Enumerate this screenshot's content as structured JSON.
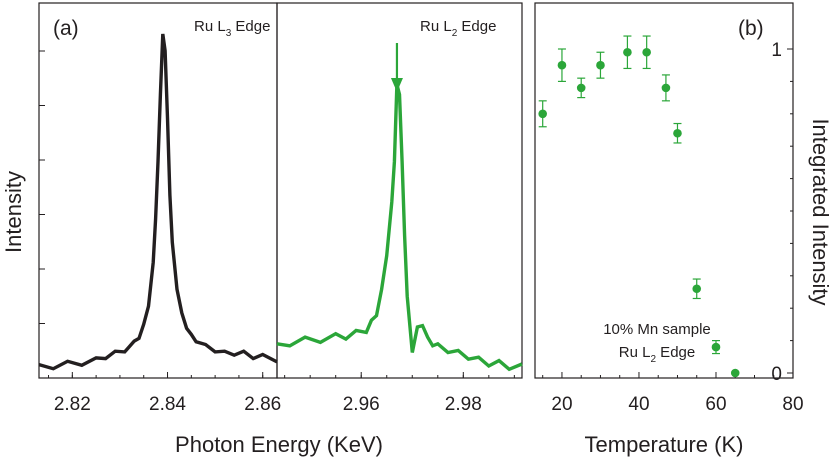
{
  "colors": {
    "dark": "#231f20",
    "green": "#2ba639"
  },
  "chart_data": [
    {
      "type": "line",
      "panel_label": "(a)",
      "annotation": "Ru L3 Edge",
      "annotation_main": "Ru L",
      "annotation_sub": "3",
      "annotation_tail": " Edge",
      "xlabel": "Photon Energy (KeV)",
      "ylabel": "Intensity",
      "xlim": [
        2.813,
        2.863
      ],
      "xticks": [
        "2.82",
        "2.84",
        "2.86"
      ],
      "yticks": 6,
      "ylim": [
        0,
        1
      ],
      "series": [
        {
          "color": "#231f20",
          "x": [
            2.813,
            2.816,
            2.819,
            2.822,
            2.825,
            2.827,
            2.829,
            2.831,
            2.833,
            2.834,
            2.835,
            2.836,
            2.837,
            2.8375,
            2.838,
            2.8385,
            2.839,
            2.8395,
            2.84,
            2.8405,
            2.841,
            2.842,
            2.843,
            2.844,
            2.845,
            2.846,
            2.848,
            2.85,
            2.852,
            2.854,
            2.856,
            2.858,
            2.86,
            2.863
          ],
          "y": [
            0.01,
            0.01,
            0.02,
            0.02,
            0.03,
            0.04,
            0.05,
            0.06,
            0.08,
            0.1,
            0.13,
            0.19,
            0.32,
            0.45,
            0.62,
            0.82,
            1.0,
            0.95,
            0.75,
            0.52,
            0.38,
            0.24,
            0.17,
            0.13,
            0.1,
            0.09,
            0.07,
            0.06,
            0.05,
            0.05,
            0.05,
            0.04,
            0.04,
            0.03
          ]
        }
      ]
    },
    {
      "type": "line",
      "annotation": "Ru L2 Edge",
      "annotation_main": "Ru L",
      "annotation_sub": "2",
      "annotation_tail": " Edge",
      "xlim": [
        2.9435,
        2.9915
      ],
      "xticks": [
        "2.96",
        "2.98"
      ],
      "arrow_x": 2.967,
      "series": [
        {
          "color": "#2ba639",
          "x": [
            2.9435,
            2.946,
            2.949,
            2.952,
            2.955,
            2.957,
            2.959,
            2.961,
            2.962,
            2.963,
            2.964,
            2.965,
            2.966,
            2.9665,
            2.967,
            2.9675,
            2.968,
            2.9685,
            2.969,
            2.97,
            2.971,
            2.972,
            2.973,
            2.974,
            2.975,
            2.977,
            2.979,
            2.981,
            2.983,
            2.985,
            2.987,
            2.989,
            2.9915
          ],
          "y": [
            0.07,
            0.08,
            0.09,
            0.09,
            0.1,
            0.1,
            0.11,
            0.12,
            0.14,
            0.17,
            0.24,
            0.34,
            0.5,
            0.62,
            0.85,
            0.82,
            0.62,
            0.4,
            0.22,
            0.06,
            0.12,
            0.14,
            0.09,
            0.08,
            0.07,
            0.06,
            0.05,
            0.04,
            0.03,
            0.02,
            0.02,
            0.01,
            0.01
          ]
        }
      ]
    },
    {
      "type": "scatter",
      "panel_label": "(b)",
      "xlabel": "Temperature (K)",
      "ylabel": "Integrated Intensity",
      "xlim": [
        13,
        80
      ],
      "ylim": [
        0,
        1
      ],
      "xticks": [
        "20",
        "40",
        "60",
        "80"
      ],
      "yticks": [
        "0",
        "1"
      ],
      "annotation_line1": "10% Mn sample",
      "annotation_main": "Ru L",
      "annotation_sub": "2",
      "annotation_tail": " Edge",
      "series": [
        {
          "color": "#2ba639",
          "x": [
            15,
            20,
            25,
            30,
            37,
            42,
            47,
            50,
            55,
            60,
            65
          ],
          "y": [
            0.8,
            0.95,
            0.88,
            0.95,
            0.99,
            0.99,
            0.88,
            0.74,
            0.26,
            0.08,
            0.0
          ],
          "err": [
            0.04,
            0.05,
            0.03,
            0.04,
            0.05,
            0.05,
            0.04,
            0.03,
            0.03,
            0.02,
            0.0
          ]
        }
      ]
    }
  ]
}
